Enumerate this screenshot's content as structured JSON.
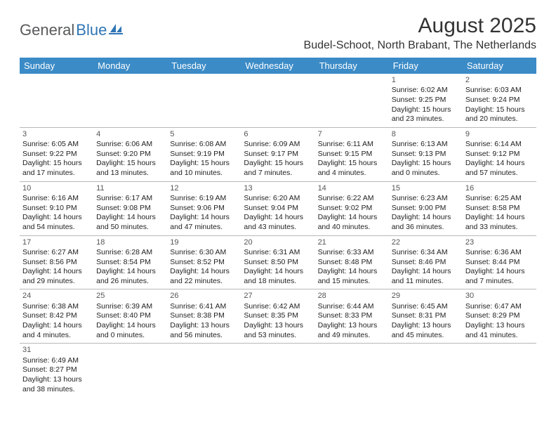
{
  "logo": {
    "part1": "General",
    "part2": "Blue"
  },
  "title": "August 2025",
  "location": "Budel-Schoot, North Brabant, The Netherlands",
  "colors": {
    "header_bg": "#3b8bc7",
    "header_text": "#ffffff",
    "logo_gray": "#58595b",
    "logo_blue": "#2f75b5",
    "border": "#b8b8b8"
  },
  "weekdays": [
    "Sunday",
    "Monday",
    "Tuesday",
    "Wednesday",
    "Thursday",
    "Friday",
    "Saturday"
  ],
  "weeks": [
    [
      null,
      null,
      null,
      null,
      null,
      {
        "day": "1",
        "sunrise": "Sunrise: 6:02 AM",
        "sunset": "Sunset: 9:25 PM",
        "daylight1": "Daylight: 15 hours",
        "daylight2": "and 23 minutes."
      },
      {
        "day": "2",
        "sunrise": "Sunrise: 6:03 AM",
        "sunset": "Sunset: 9:24 PM",
        "daylight1": "Daylight: 15 hours",
        "daylight2": "and 20 minutes."
      }
    ],
    [
      {
        "day": "3",
        "sunrise": "Sunrise: 6:05 AM",
        "sunset": "Sunset: 9:22 PM",
        "daylight1": "Daylight: 15 hours",
        "daylight2": "and 17 minutes."
      },
      {
        "day": "4",
        "sunrise": "Sunrise: 6:06 AM",
        "sunset": "Sunset: 9:20 PM",
        "daylight1": "Daylight: 15 hours",
        "daylight2": "and 13 minutes."
      },
      {
        "day": "5",
        "sunrise": "Sunrise: 6:08 AM",
        "sunset": "Sunset: 9:19 PM",
        "daylight1": "Daylight: 15 hours",
        "daylight2": "and 10 minutes."
      },
      {
        "day": "6",
        "sunrise": "Sunrise: 6:09 AM",
        "sunset": "Sunset: 9:17 PM",
        "daylight1": "Daylight: 15 hours",
        "daylight2": "and 7 minutes."
      },
      {
        "day": "7",
        "sunrise": "Sunrise: 6:11 AM",
        "sunset": "Sunset: 9:15 PM",
        "daylight1": "Daylight: 15 hours",
        "daylight2": "and 4 minutes."
      },
      {
        "day": "8",
        "sunrise": "Sunrise: 6:13 AM",
        "sunset": "Sunset: 9:13 PM",
        "daylight1": "Daylight: 15 hours",
        "daylight2": "and 0 minutes."
      },
      {
        "day": "9",
        "sunrise": "Sunrise: 6:14 AM",
        "sunset": "Sunset: 9:12 PM",
        "daylight1": "Daylight: 14 hours",
        "daylight2": "and 57 minutes."
      }
    ],
    [
      {
        "day": "10",
        "sunrise": "Sunrise: 6:16 AM",
        "sunset": "Sunset: 9:10 PM",
        "daylight1": "Daylight: 14 hours",
        "daylight2": "and 54 minutes."
      },
      {
        "day": "11",
        "sunrise": "Sunrise: 6:17 AM",
        "sunset": "Sunset: 9:08 PM",
        "daylight1": "Daylight: 14 hours",
        "daylight2": "and 50 minutes."
      },
      {
        "day": "12",
        "sunrise": "Sunrise: 6:19 AM",
        "sunset": "Sunset: 9:06 PM",
        "daylight1": "Daylight: 14 hours",
        "daylight2": "and 47 minutes."
      },
      {
        "day": "13",
        "sunrise": "Sunrise: 6:20 AM",
        "sunset": "Sunset: 9:04 PM",
        "daylight1": "Daylight: 14 hours",
        "daylight2": "and 43 minutes."
      },
      {
        "day": "14",
        "sunrise": "Sunrise: 6:22 AM",
        "sunset": "Sunset: 9:02 PM",
        "daylight1": "Daylight: 14 hours",
        "daylight2": "and 40 minutes."
      },
      {
        "day": "15",
        "sunrise": "Sunrise: 6:23 AM",
        "sunset": "Sunset: 9:00 PM",
        "daylight1": "Daylight: 14 hours",
        "daylight2": "and 36 minutes."
      },
      {
        "day": "16",
        "sunrise": "Sunrise: 6:25 AM",
        "sunset": "Sunset: 8:58 PM",
        "daylight1": "Daylight: 14 hours",
        "daylight2": "and 33 minutes."
      }
    ],
    [
      {
        "day": "17",
        "sunrise": "Sunrise: 6:27 AM",
        "sunset": "Sunset: 8:56 PM",
        "daylight1": "Daylight: 14 hours",
        "daylight2": "and 29 minutes."
      },
      {
        "day": "18",
        "sunrise": "Sunrise: 6:28 AM",
        "sunset": "Sunset: 8:54 PM",
        "daylight1": "Daylight: 14 hours",
        "daylight2": "and 26 minutes."
      },
      {
        "day": "19",
        "sunrise": "Sunrise: 6:30 AM",
        "sunset": "Sunset: 8:52 PM",
        "daylight1": "Daylight: 14 hours",
        "daylight2": "and 22 minutes."
      },
      {
        "day": "20",
        "sunrise": "Sunrise: 6:31 AM",
        "sunset": "Sunset: 8:50 PM",
        "daylight1": "Daylight: 14 hours",
        "daylight2": "and 18 minutes."
      },
      {
        "day": "21",
        "sunrise": "Sunrise: 6:33 AM",
        "sunset": "Sunset: 8:48 PM",
        "daylight1": "Daylight: 14 hours",
        "daylight2": "and 15 minutes."
      },
      {
        "day": "22",
        "sunrise": "Sunrise: 6:34 AM",
        "sunset": "Sunset: 8:46 PM",
        "daylight1": "Daylight: 14 hours",
        "daylight2": "and 11 minutes."
      },
      {
        "day": "23",
        "sunrise": "Sunrise: 6:36 AM",
        "sunset": "Sunset: 8:44 PM",
        "daylight1": "Daylight: 14 hours",
        "daylight2": "and 7 minutes."
      }
    ],
    [
      {
        "day": "24",
        "sunrise": "Sunrise: 6:38 AM",
        "sunset": "Sunset: 8:42 PM",
        "daylight1": "Daylight: 14 hours",
        "daylight2": "and 4 minutes."
      },
      {
        "day": "25",
        "sunrise": "Sunrise: 6:39 AM",
        "sunset": "Sunset: 8:40 PM",
        "daylight1": "Daylight: 14 hours",
        "daylight2": "and 0 minutes."
      },
      {
        "day": "26",
        "sunrise": "Sunrise: 6:41 AM",
        "sunset": "Sunset: 8:38 PM",
        "daylight1": "Daylight: 13 hours",
        "daylight2": "and 56 minutes."
      },
      {
        "day": "27",
        "sunrise": "Sunrise: 6:42 AM",
        "sunset": "Sunset: 8:35 PM",
        "daylight1": "Daylight: 13 hours",
        "daylight2": "and 53 minutes."
      },
      {
        "day": "28",
        "sunrise": "Sunrise: 6:44 AM",
        "sunset": "Sunset: 8:33 PM",
        "daylight1": "Daylight: 13 hours",
        "daylight2": "and 49 minutes."
      },
      {
        "day": "29",
        "sunrise": "Sunrise: 6:45 AM",
        "sunset": "Sunset: 8:31 PM",
        "daylight1": "Daylight: 13 hours",
        "daylight2": "and 45 minutes."
      },
      {
        "day": "30",
        "sunrise": "Sunrise: 6:47 AM",
        "sunset": "Sunset: 8:29 PM",
        "daylight1": "Daylight: 13 hours",
        "daylight2": "and 41 minutes."
      }
    ],
    [
      {
        "day": "31",
        "sunrise": "Sunrise: 6:49 AM",
        "sunset": "Sunset: 8:27 PM",
        "daylight1": "Daylight: 13 hours",
        "daylight2": "and 38 minutes."
      },
      null,
      null,
      null,
      null,
      null,
      null
    ]
  ]
}
